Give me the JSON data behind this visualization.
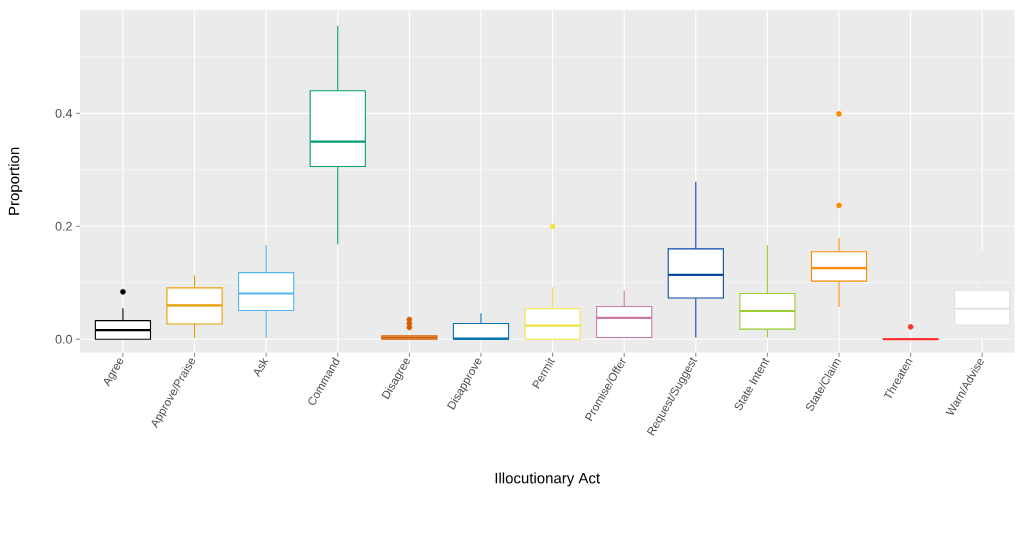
{
  "chart_data": {
    "type": "box",
    "xlabel": "Illocutionary Act",
    "ylabel": "Proportion",
    "categories": [
      "Agree",
      "Approve/Praise",
      "Ask",
      "Command",
      "Disagree",
      "Disapprove",
      "Permit",
      "Promise/Offer",
      "Request/Suggest",
      "State Intent",
      "State/Claim",
      "Threaten",
      "Warn/Advise"
    ],
    "colors": [
      "#000000",
      "#E69F00",
      "#56B4E9",
      "#009E73",
      "#D55E00",
      "#0072B2",
      "#F0E442",
      "#CC79A7",
      "#0D47A1",
      "#9ACD32",
      "#FF8C00",
      "#FF3030",
      "#E3E0E0"
    ],
    "boxes": [
      {
        "low": 0,
        "q1": 0,
        "median": 0.016,
        "q3": 0.033,
        "high": 0.055,
        "outliers": [
          0.084
        ]
      },
      {
        "low": 0.002,
        "q1": 0.027,
        "median": 0.06,
        "q3": 0.091,
        "high": 0.113
      },
      {
        "low": 0.002,
        "q1": 0.051,
        "median": 0.081,
        "q3": 0.118,
        "high": 0.167
      },
      {
        "low": 0.168,
        "q1": 0.306,
        "median": 0.35,
        "q3": 0.44,
        "high": 0.555
      },
      {
        "low": 0,
        "q1": 0,
        "median": 0.003,
        "q3": 0.006,
        "high": 0.006,
        "outliers": [
          0.021,
          0.028,
          0.035
        ]
      },
      {
        "low": 0,
        "q1": 0,
        "median": 0.001,
        "q3": 0.028,
        "high": 0.046
      },
      {
        "low": 0,
        "q1": 0,
        "median": 0.024,
        "q3": 0.054,
        "high": 0.092,
        "outliers": [
          0.2
        ]
      },
      {
        "low": 0.003,
        "q1": 0.003,
        "median": 0.038,
        "q3": 0.058,
        "high": 0.086
      },
      {
        "low": 0.003,
        "q1": 0.073,
        "median": 0.114,
        "q3": 0.16,
        "high": 0.279
      },
      {
        "low": 0.003,
        "q1": 0.018,
        "median": 0.05,
        "q3": 0.081,
        "high": 0.167
      },
      {
        "low": 0.057,
        "q1": 0.103,
        "median": 0.126,
        "q3": 0.155,
        "high": 0.179,
        "outliers": [
          0.237,
          0.399
        ]
      },
      {
        "low": 0,
        "q1": 0,
        "median": 0,
        "q3": 0.001,
        "high": 0.002,
        "outliers": [
          0.022
        ]
      },
      {
        "low": 0.003,
        "q1": 0.025,
        "median": 0.054,
        "q3": 0.087,
        "high": 0.158
      }
    ],
    "ylim": [
      -0.024,
      0.583
    ],
    "yticks": [
      {
        "value": 0,
        "label": "0.0"
      },
      {
        "value": 0.2,
        "label": "0.2"
      },
      {
        "value": 0.4,
        "label": "0.4"
      }
    ],
    "grid": true
  }
}
